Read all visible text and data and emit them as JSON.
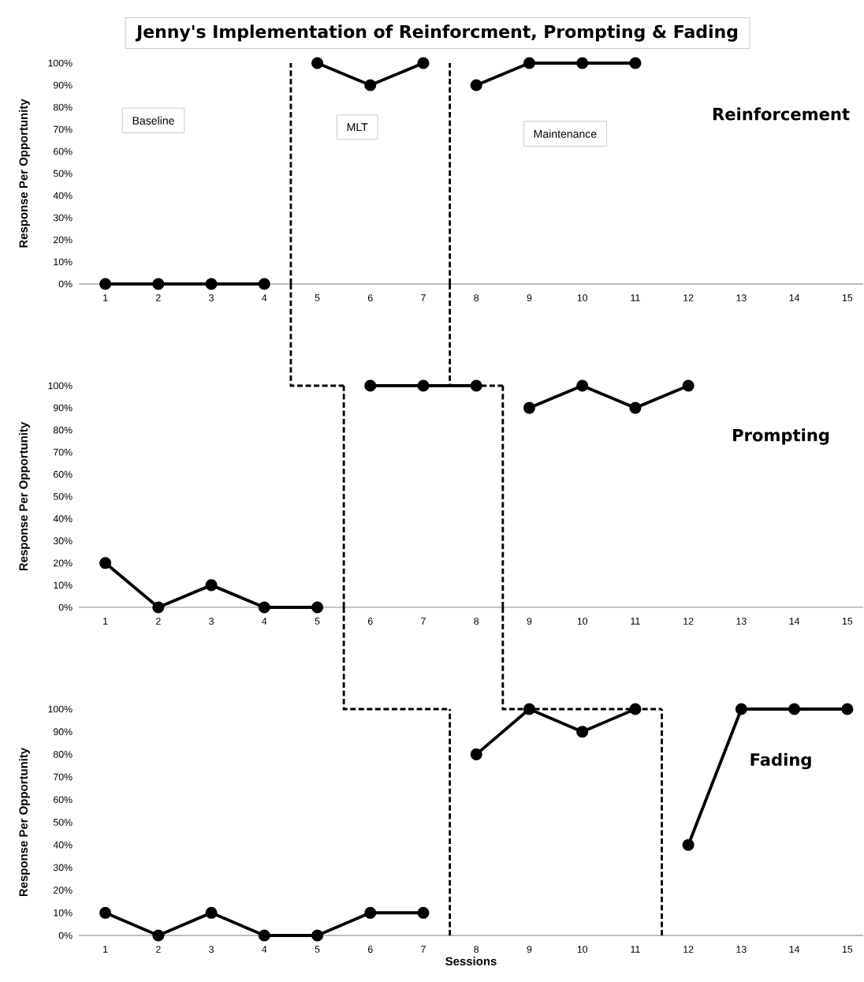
{
  "chart_data": [
    {
      "type": "line",
      "title": "Jenny's Implementation of Reinforcment, Prompting & Fading",
      "subtitle": "Reinforcement",
      "ylabel": "Response Per Opportunity",
      "xlim": [
        0.5,
        15.3
      ],
      "xticks": [
        1,
        2,
        3,
        4,
        5,
        6,
        7,
        8,
        9,
        10,
        11,
        12,
        13,
        14,
        15
      ],
      "ylim": [
        0,
        100
      ],
      "yticks": [
        {
          "value": 0,
          "label": "0%"
        },
        {
          "value": 10,
          "label": "10%"
        },
        {
          "value": 20,
          "label": "20%"
        },
        {
          "value": 30,
          "label": "30%"
        },
        {
          "value": 40,
          "label": "40%"
        },
        {
          "value": 50,
          "label": "50%"
        },
        {
          "value": 60,
          "label": "60%"
        },
        {
          "value": 70,
          "label": "70%"
        },
        {
          "value": 80,
          "label": "80%"
        },
        {
          "value": 90,
          "label": "90%"
        },
        {
          "value": 100,
          "label": "100%"
        }
      ],
      "series": [
        {
          "color": "#000000",
          "x": [
            1,
            2,
            3,
            4
          ],
          "values": [
            0,
            0,
            0,
            0
          ]
        },
        {
          "color": "#000000",
          "x": [
            5,
            6,
            7
          ],
          "values": [
            100,
            90,
            100
          ]
        },
        {
          "color": "#000000",
          "x": [
            8,
            9,
            10,
            11
          ],
          "values": [
            90,
            100,
            100,
            100
          ]
        }
      ],
      "ref_lines": [
        {
          "axis": "x",
          "value": 4.5,
          "color": "#000000",
          "line_style": "dashed"
        },
        {
          "axis": "x",
          "value": 7.5,
          "color": "#000000",
          "line_style": "dashed"
        }
      ],
      "annotations": [
        "Baseline",
        "MLT",
        "Maintenance"
      ],
      "marker": "circle",
      "line_style": "solid"
    },
    {
      "type": "line",
      "title": "Prompting",
      "ylabel": "Response Per Opportunity",
      "xlim": [
        0.5,
        15.3
      ],
      "xticks": [
        1,
        2,
        3,
        4,
        5,
        6,
        7,
        8,
        9,
        10,
        11,
        12,
        13,
        14,
        15
      ],
      "ylim": [
        0,
        100
      ],
      "yticks": [
        {
          "value": 0,
          "label": "0%"
        },
        {
          "value": 10,
          "label": "10%"
        },
        {
          "value": 20,
          "label": "20%"
        },
        {
          "value": 30,
          "label": "30%"
        },
        {
          "value": 40,
          "label": "40%"
        },
        {
          "value": 50,
          "label": "50%"
        },
        {
          "value": 60,
          "label": "60%"
        },
        {
          "value": 70,
          "label": "70%"
        },
        {
          "value": 80,
          "label": "80%"
        },
        {
          "value": 90,
          "label": "90%"
        },
        {
          "value": 100,
          "label": "100%"
        }
      ],
      "series": [
        {
          "color": "#000000",
          "x": [
            1,
            2,
            3,
            4,
            5
          ],
          "values": [
            20,
            0,
            10,
            0,
            0
          ]
        },
        {
          "color": "#000000",
          "x": [
            6,
            7,
            8
          ],
          "values": [
            100,
            100,
            100
          ]
        },
        {
          "color": "#000000",
          "x": [
            9,
            10,
            11,
            12
          ],
          "values": [
            90,
            100,
            90,
            100
          ]
        }
      ],
      "ref_lines": [
        {
          "axis": "x",
          "value": 5.5,
          "color": "#000000",
          "line_style": "dashed"
        },
        {
          "axis": "x",
          "value": 8.5,
          "color": "#000000",
          "line_style": "dashed"
        }
      ],
      "marker": "circle",
      "line_style": "solid"
    },
    {
      "type": "line",
      "title": "Fading",
      "ylabel": "Response Per Opportunity",
      "xlabel": "Sessions",
      "xlim": [
        0.5,
        15.3
      ],
      "xticks": [
        1,
        2,
        3,
        4,
        5,
        6,
        7,
        8,
        9,
        10,
        11,
        12,
        13,
        14,
        15
      ],
      "ylim": [
        0,
        100
      ],
      "yticks": [
        {
          "value": 0,
          "label": "0%"
        },
        {
          "value": 10,
          "label": "10%"
        },
        {
          "value": 20,
          "label": "20%"
        },
        {
          "value": 30,
          "label": "30%"
        },
        {
          "value": 40,
          "label": "40%"
        },
        {
          "value": 50,
          "label": "50%"
        },
        {
          "value": 60,
          "label": "60%"
        },
        {
          "value": 70,
          "label": "70%"
        },
        {
          "value": 80,
          "label": "80%"
        },
        {
          "value": 90,
          "label": "90%"
        },
        {
          "value": 100,
          "label": "100%"
        }
      ],
      "series": [
        {
          "color": "#000000",
          "x": [
            1,
            2,
            3,
            4,
            5,
            6,
            7
          ],
          "values": [
            10,
            0,
            10,
            0,
            0,
            10,
            10
          ]
        },
        {
          "color": "#000000",
          "x": [
            8,
            9,
            10,
            11
          ],
          "values": [
            80,
            100,
            90,
            100
          ]
        },
        {
          "color": "#000000",
          "x": [
            12,
            13,
            14,
            15
          ],
          "values": [
            40,
            100,
            100,
            100
          ]
        }
      ],
      "ref_lines": [
        {
          "axis": "x",
          "value": 7.5,
          "color": "#000000",
          "line_style": "dashed"
        },
        {
          "axis": "x",
          "value": 11.5,
          "color": "#000000",
          "line_style": "dashed"
        }
      ],
      "marker": "circle",
      "line_style": "solid"
    }
  ]
}
